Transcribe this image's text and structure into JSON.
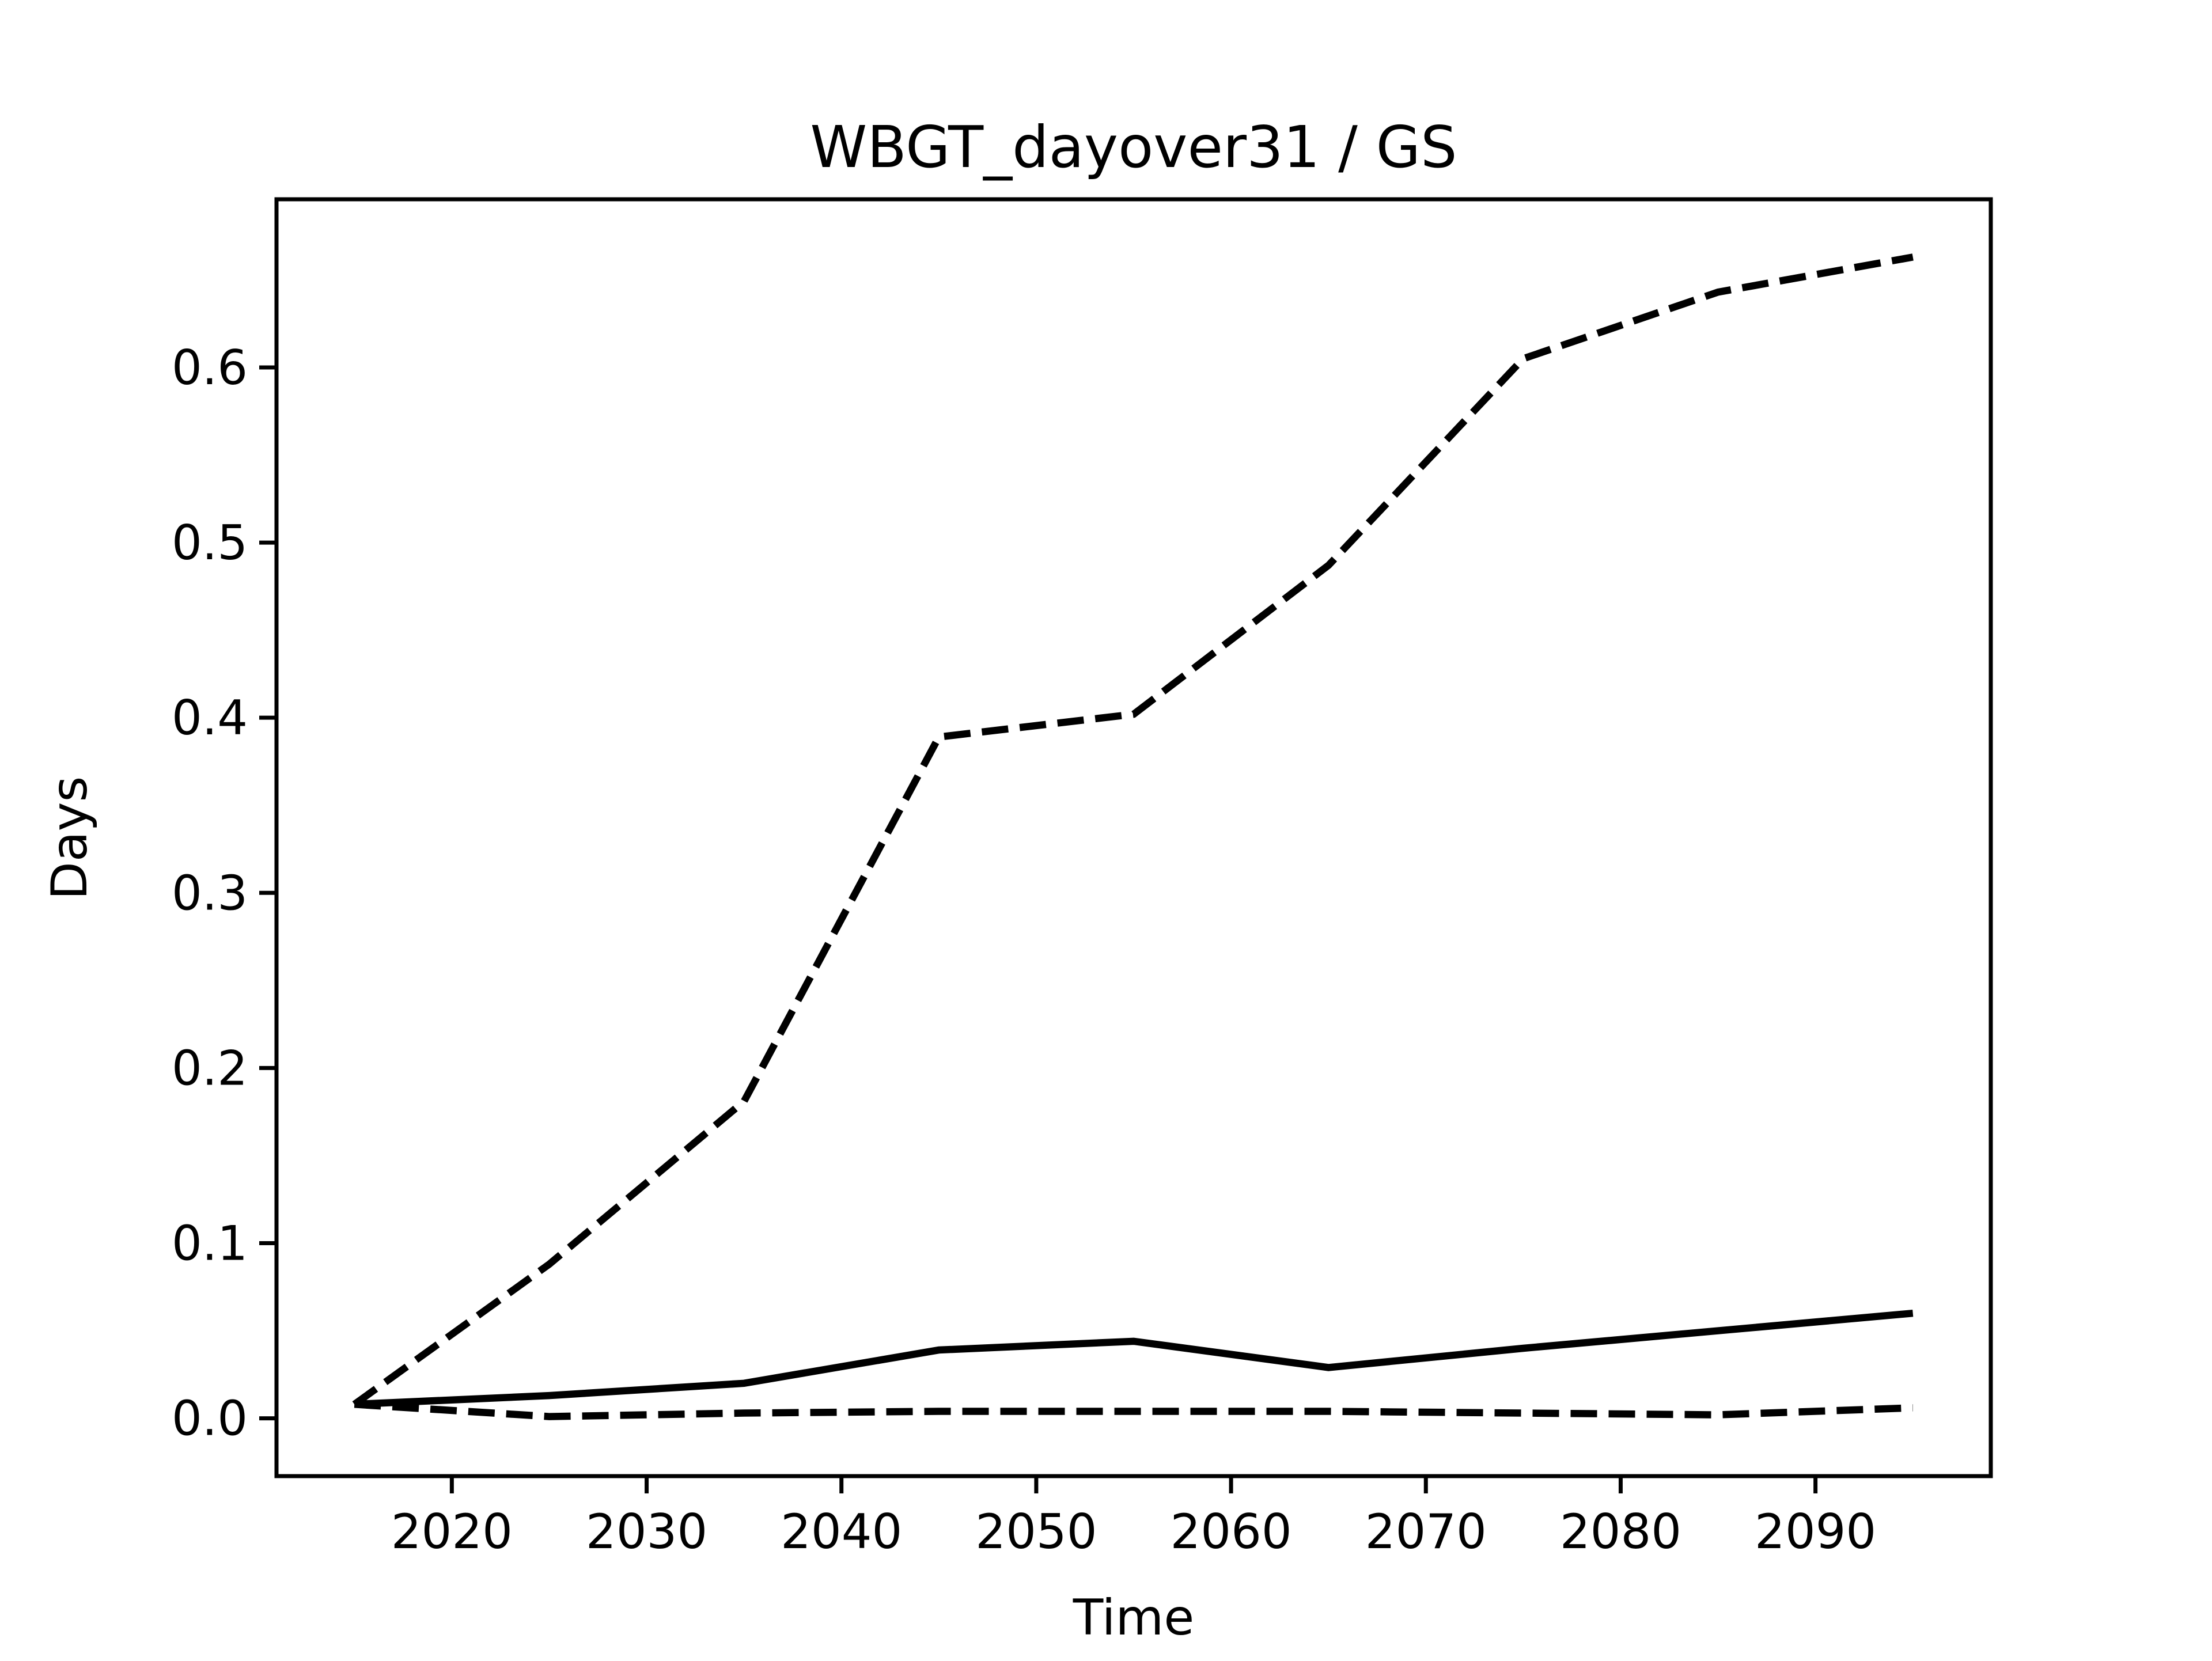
{
  "figure": {
    "background": "#ffffff",
    "line_color": "#000000"
  },
  "chart_data": {
    "type": "line",
    "title": "WBGT_dayover31 / GS",
    "xlabel": "Time",
    "ylabel": "Days",
    "grid": false,
    "legend": "none",
    "x": [
      2015,
      2025,
      2035,
      2045,
      2055,
      2065,
      2075,
      2085,
      2095
    ],
    "series": [
      {
        "name": "upper-bound-dashed",
        "style": "dashed",
        "color": "#000000",
        "values": [
          0.008,
          0.088,
          0.181,
          0.389,
          0.402,
          0.487,
          0.605,
          0.643,
          0.663
        ]
      },
      {
        "name": "central-solid",
        "style": "solid",
        "color": "#000000",
        "values": [
          0.008,
          0.013,
          0.02,
          0.039,
          0.044,
          0.029,
          0.04,
          0.05,
          0.06
        ]
      },
      {
        "name": "lower-bound-dashed",
        "style": "dashed",
        "color": "#000000",
        "values": [
          0.008,
          0.001,
          0.003,
          0.004,
          0.004,
          0.004,
          0.003,
          0.002,
          0.006
        ]
      }
    ],
    "xticks": [
      2020,
      2030,
      2040,
      2050,
      2060,
      2070,
      2080,
      2090
    ],
    "yticks": [
      "0.0",
      "0.1",
      "0.2",
      "0.3",
      "0.4",
      "0.5",
      "0.6"
    ],
    "ytick_values": [
      0.0,
      0.1,
      0.2,
      0.3,
      0.4,
      0.5,
      0.6
    ],
    "xlim": [
      2011,
      2099
    ],
    "ylim": [
      -0.033,
      0.696
    ]
  }
}
